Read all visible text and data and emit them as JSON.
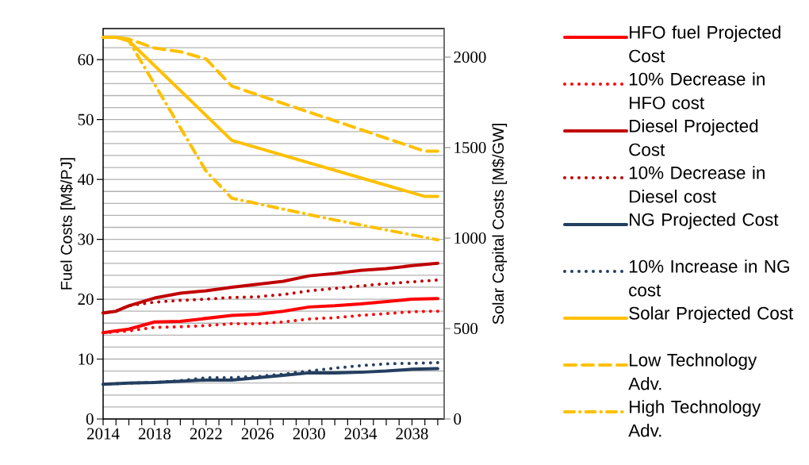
{
  "chart_data": {
    "type": "line",
    "ylabel": "Fuel Costs [M$/PJ]",
    "y2label": "Solar Capital Costs [M$/GW]",
    "xlim": [
      2014,
      2040.5
    ],
    "xticks": [
      2014,
      {
        "value": 2015,
        "label": null
      },
      {
        "value": 2016,
        "label": null
      },
      {
        "value": 2017,
        "label": null
      },
      2018,
      {
        "value": 2019,
        "label": null
      },
      {
        "value": 2020,
        "label": null
      },
      {
        "value": 2021,
        "label": null
      },
      2022,
      {
        "value": 2023,
        "label": null
      },
      {
        "value": 2024,
        "label": null
      },
      {
        "value": 2025,
        "label": null
      },
      2026,
      {
        "value": 2027,
        "label": null
      },
      {
        "value": 2028,
        "label": null
      },
      {
        "value": 2029,
        "label": null
      },
      2030,
      {
        "value": 2031,
        "label": null
      },
      {
        "value": 2032,
        "label": null
      },
      {
        "value": 2033,
        "label": null
      },
      2034,
      {
        "value": 2035,
        "label": null
      },
      {
        "value": 2036,
        "label": null
      },
      {
        "value": 2037,
        "label": null
      },
      2038,
      {
        "value": 2039,
        "label": null
      },
      {
        "value": 2040,
        "label": null
      }
    ],
    "ylim": [
      0,
      65.2
    ],
    "yticks": [
      0,
      {
        "value": 2,
        "label": null
      },
      {
        "value": 4,
        "label": null
      },
      {
        "value": 6,
        "label": null
      },
      {
        "value": 8,
        "label": null
      },
      10,
      {
        "value": 12,
        "label": null
      },
      {
        "value": 14,
        "label": null
      },
      {
        "value": 16,
        "label": null
      },
      {
        "value": 18,
        "label": null
      },
      20,
      {
        "value": 22,
        "label": null
      },
      {
        "value": 24,
        "label": null
      },
      {
        "value": 26,
        "label": null
      },
      {
        "value": 28,
        "label": null
      },
      30,
      {
        "value": 32,
        "label": null
      },
      {
        "value": 34,
        "label": null
      },
      {
        "value": 36,
        "label": null
      },
      {
        "value": 38,
        "label": null
      },
      40,
      {
        "value": 42,
        "label": null
      },
      {
        "value": 44,
        "label": null
      },
      {
        "value": 46,
        "label": null
      },
      {
        "value": 48,
        "label": null
      },
      50,
      {
        "value": 52,
        "label": null
      },
      {
        "value": 54,
        "label": null
      },
      {
        "value": 56,
        "label": null
      },
      {
        "value": 58,
        "label": null
      },
      60,
      {
        "value": 62,
        "label": null
      },
      {
        "value": 64,
        "label": null
      }
    ],
    "y2lim": [
      0,
      2158
    ],
    "y2ticks": [
      0,
      500,
      1000,
      1500,
      2000
    ],
    "grid": "y",
    "legend": "right",
    "series": [
      {
        "name": "HFO fuel Projected Cost",
        "color": "#ff0000",
        "line_style": "solid",
        "x": [
          2014,
          2016,
          2018,
          2020,
          2022,
          2024,
          2026,
          2028,
          2030,
          2032,
          2034,
          2036,
          2038,
          2040
        ],
        "values": [
          14.4,
          15.0,
          16.2,
          16.3,
          16.8,
          17.3,
          17.5,
          18.0,
          18.7,
          18.9,
          19.2,
          19.6,
          20.0,
          20.1
        ]
      },
      {
        "name": "10% Decrease in HFO cost",
        "color": "#ff0000",
        "line_style": "dotted",
        "x": [
          2014,
          2016,
          2018,
          2020,
          2022,
          2024,
          2026,
          2028,
          2030,
          2032,
          2034,
          2036,
          2038,
          2040
        ],
        "values": [
          14.4,
          14.7,
          15.3,
          15.4,
          15.6,
          15.9,
          15.9,
          16.2,
          16.7,
          16.9,
          17.3,
          17.6,
          17.9,
          18.0
        ]
      },
      {
        "name": "Diesel Projected Cost",
        "color": "#c00000",
        "line_style": "solid",
        "x": [
          2014,
          2015,
          2016,
          2018,
          2020,
          2022,
          2024,
          2026,
          2028,
          2030,
          2032,
          2034,
          2036,
          2038,
          2040
        ],
        "values": [
          17.7,
          18.0,
          18.9,
          20.2,
          21.0,
          21.4,
          22.0,
          22.5,
          23.0,
          23.9,
          24.3,
          24.8,
          25.1,
          25.6,
          26.0
        ]
      },
      {
        "name": "10% Decrease in Diesel cost",
        "color": "#c00000",
        "line_style": "dotted",
        "x": [
          2014,
          2015,
          2016,
          2018,
          2020,
          2022,
          2024,
          2026,
          2028,
          2030,
          2032,
          2034,
          2036,
          2038,
          2040
        ],
        "values": [
          17.7,
          18.0,
          18.9,
          19.5,
          19.8,
          20.0,
          20.3,
          20.4,
          20.8,
          21.4,
          21.8,
          22.2,
          22.6,
          22.9,
          23.2
        ]
      },
      {
        "name": "NG Projected Cost",
        "color": "#243f60",
        "line_style": "solid",
        "x": [
          2014,
          2016,
          2018,
          2020,
          2022,
          2024,
          2026,
          2028,
          2030,
          2032,
          2034,
          2036,
          2038,
          2040
        ],
        "values": [
          5.8,
          6.0,
          6.1,
          6.3,
          6.5,
          6.5,
          6.9,
          7.3,
          7.7,
          7.7,
          7.8,
          8.0,
          8.3,
          8.4
        ]
      },
      {
        "name": "10% Increase in NG cost",
        "color": "#243f60",
        "line_style": "dotted",
        "x": [
          2014,
          2016,
          2018,
          2020,
          2022,
          2024,
          2026,
          2028,
          2030,
          2032,
          2034,
          2036,
          2038,
          2040
        ],
        "values": [
          5.8,
          6.0,
          6.1,
          6.4,
          6.9,
          6.9,
          7.1,
          7.5,
          8.0,
          8.5,
          8.9,
          9.2,
          9.3,
          9.4
        ]
      },
      {
        "name": "Solar Projected Cost",
        "color": "#ffc000",
        "line_style": "solid",
        "axis": "y2",
        "x": [
          2014,
          2015,
          2016,
          2024,
          2039,
          2040
        ],
        "values": [
          2110,
          2110,
          2090,
          1540,
          1230,
          1230
        ]
      },
      {
        "name": "Low Technology Adv.",
        "color": "#ffc000",
        "line_style": "dashed",
        "axis": "y2",
        "x": [
          2014,
          2015,
          2016,
          2018,
          2020,
          2022,
          2024,
          2039,
          2040
        ],
        "values": [
          2110,
          2110,
          2100,
          2050,
          2030,
          1990,
          1840,
          1480,
          1480
        ]
      },
      {
        "name": "High Technology Adv.",
        "color": "#ffc000",
        "line_style": "dashdot",
        "axis": "y2",
        "x": [
          2014,
          2015,
          2016,
          2018,
          2020,
          2022,
          2024,
          2032,
          2040
        ],
        "values": [
          2110,
          2110,
          2090,
          1850,
          1610,
          1370,
          1220,
          1100,
          990
        ]
      }
    ]
  }
}
